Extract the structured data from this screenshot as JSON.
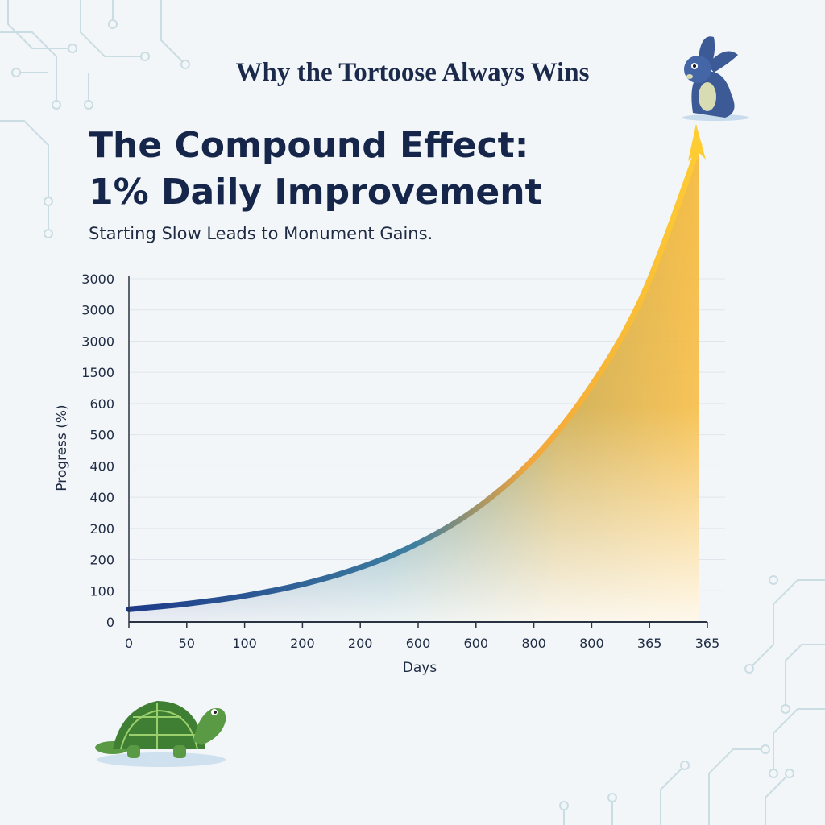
{
  "header": {
    "supertitle": "Why the Tortoose Always Wins",
    "title_line1": "The Compound Effect:",
    "title_line2": "1% Daily Improvement",
    "subtitle": "Starting Slow Leads to Monument Gains."
  },
  "colors": {
    "navy": "#1b2a4a",
    "curve_start": "#223f8c",
    "curve_mid": "#2f7a8c",
    "curve_end": "#f7b733",
    "turtle": "#4b8a3c",
    "rabbit": "#3b5a96"
  },
  "icons": [
    "turtle-icon",
    "rabbit-icon",
    "circuit-decoration"
  ],
  "chart_data": {
    "type": "area",
    "x_tick_labels": [
      "0",
      "50",
      "100",
      "200",
      "200",
      "600",
      "600",
      "800",
      "800",
      "365",
      "365"
    ],
    "y_tick_labels": [
      "0",
      "100",
      "200",
      "200",
      "400",
      "400",
      "500",
      "600",
      "1500",
      "3000",
      "3000",
      "3000"
    ],
    "xlabel": "Days",
    "ylabel": "Progress (%)",
    "x": [
      0,
      36.5,
      73,
      109.5,
      146,
      182.5,
      219,
      255.5,
      292,
      328.5,
      365
    ],
    "y": [
      100,
      143,
      205,
      294,
      424,
      608,
      870,
      1250,
      1800,
      2580,
      3780
    ],
    "grid": true,
    "arrow_at_end": true
  }
}
